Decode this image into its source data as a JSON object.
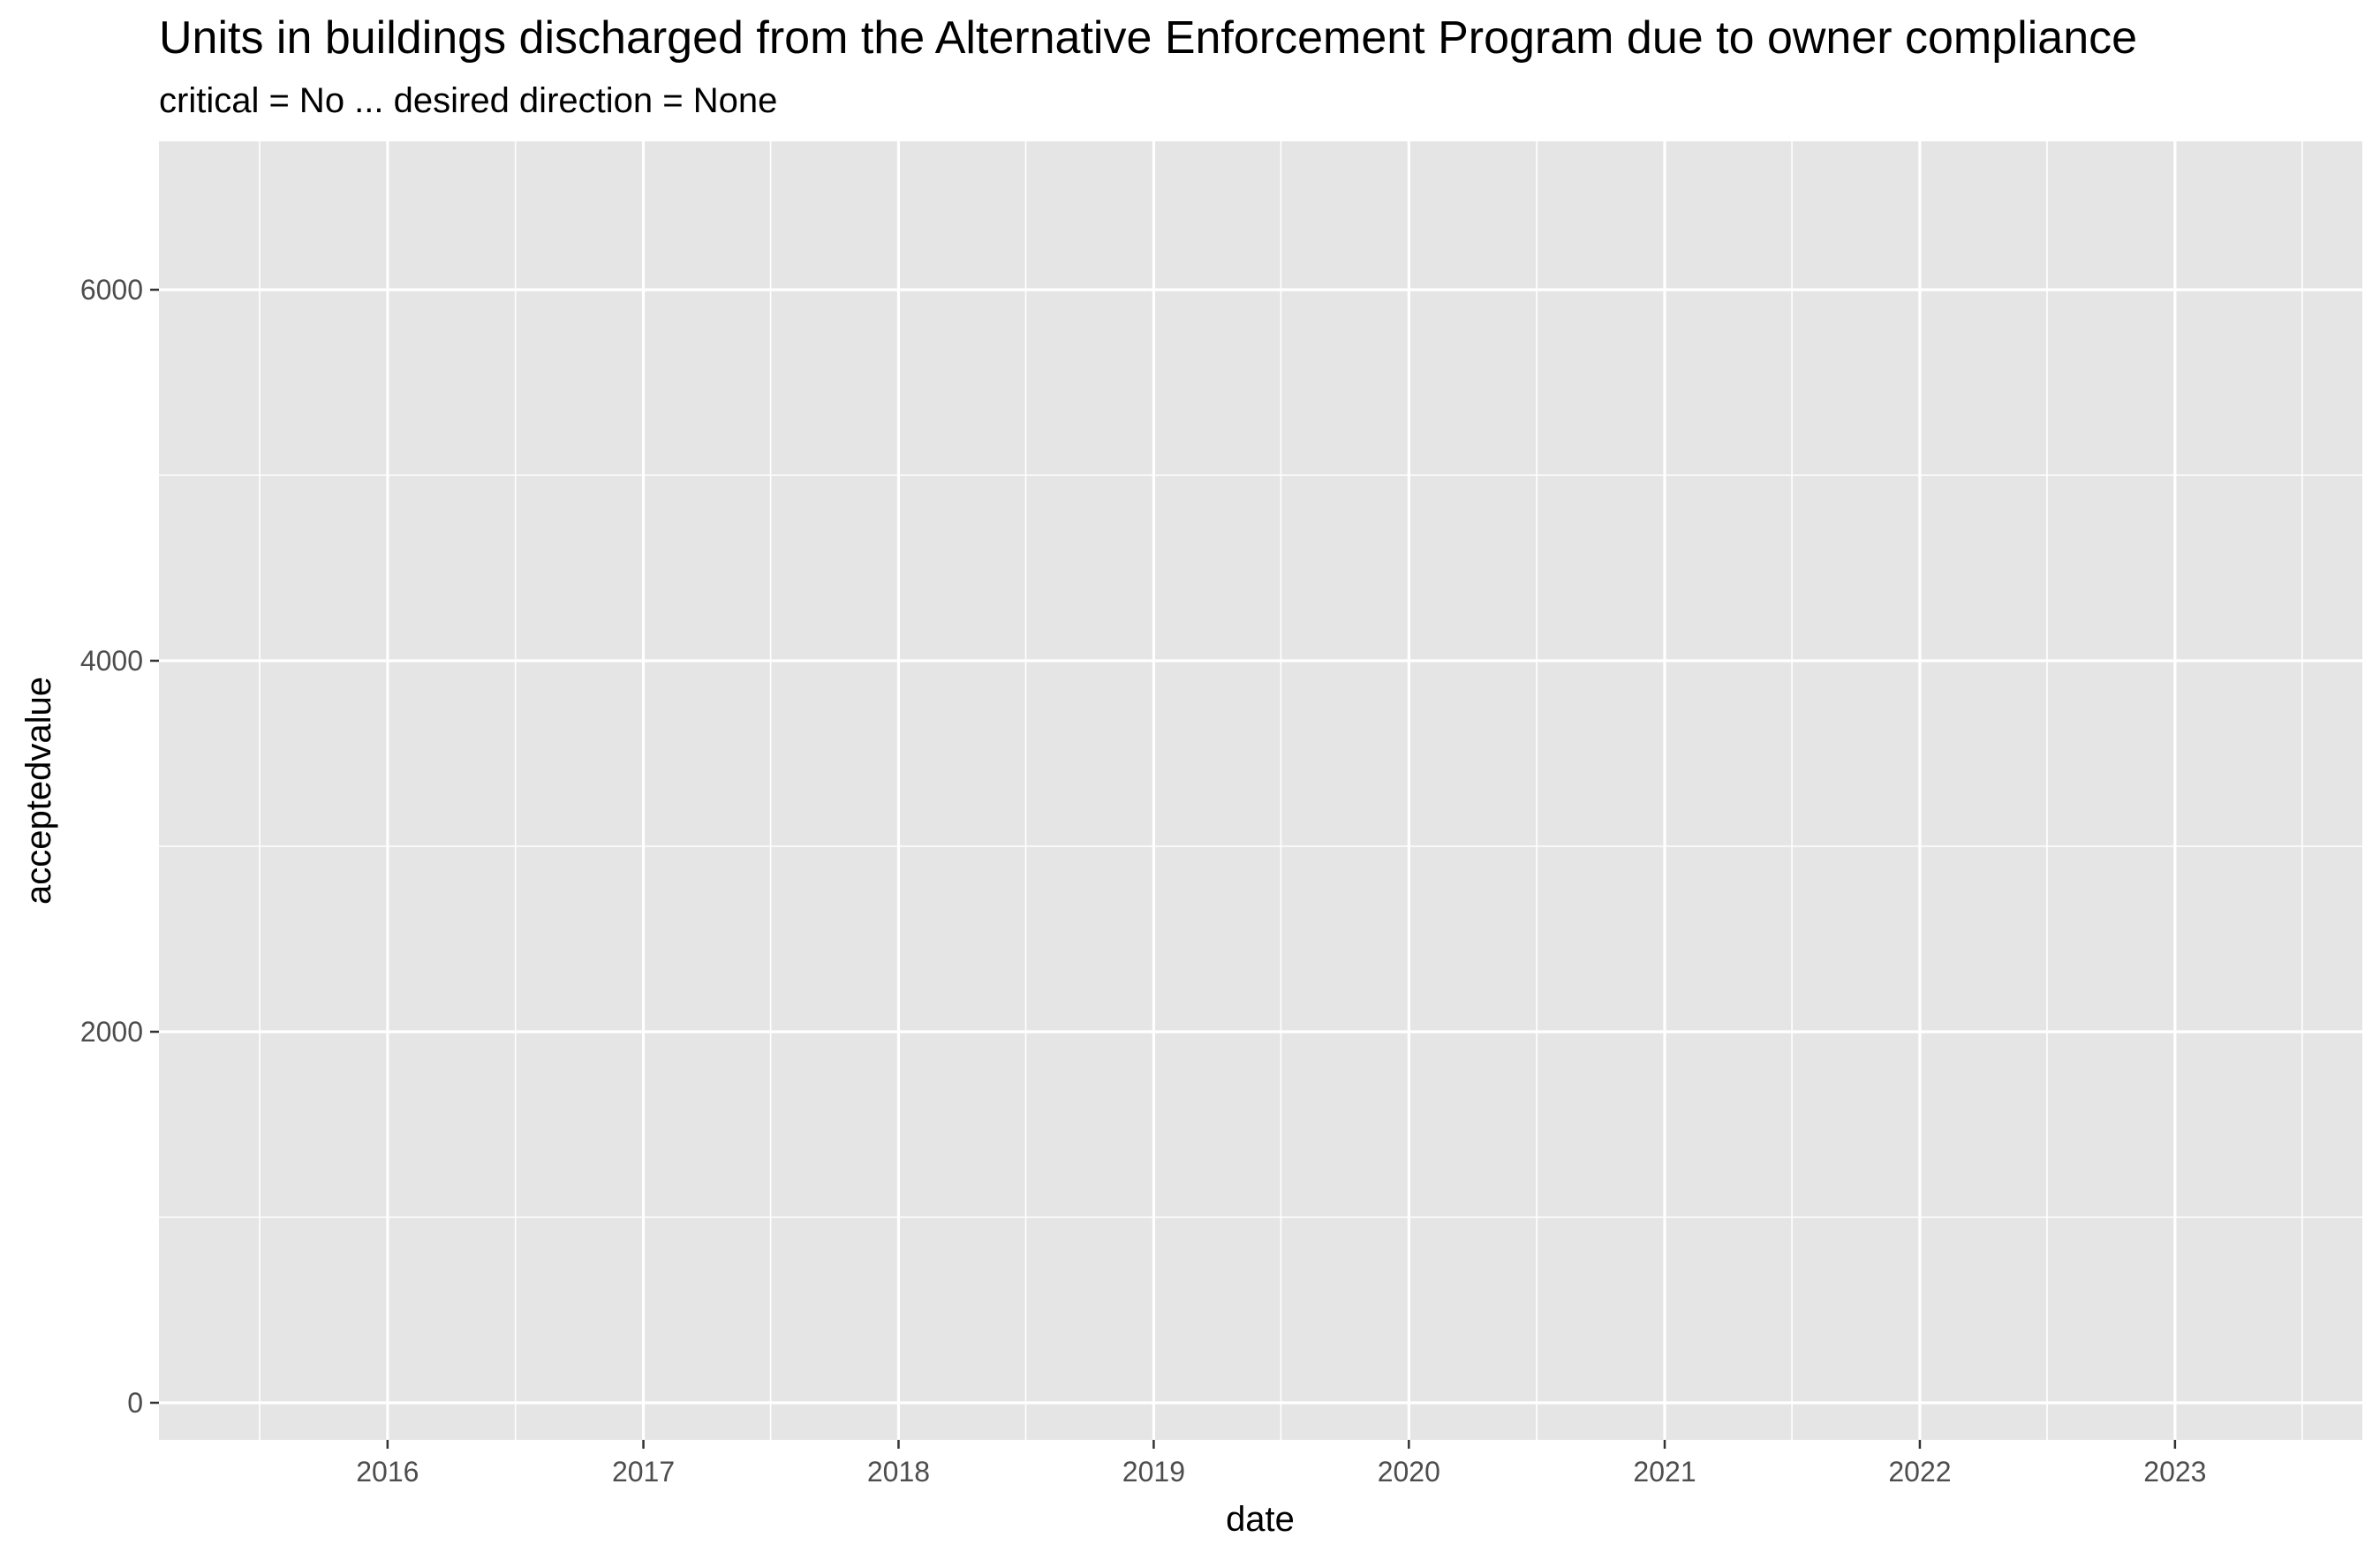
{
  "chart_data": {
    "type": "line",
    "title": "Units in buildings discharged from the Alternative Enforcement Program due to owner compliance",
    "subtitle": "critical = No ... desired direction = None",
    "xlabel": "date",
    "ylabel": "acceptedvalue",
    "x_ticks": [
      "2016",
      "2017",
      "2018",
      "2019",
      "2020",
      "2021",
      "2022",
      "2023"
    ],
    "y_ticks": [
      0,
      2000,
      4000,
      6000
    ],
    "xlim": [
      "2015-02-08",
      "2023-09-26"
    ],
    "ylim": [
      -200,
      6800
    ],
    "grid": true,
    "legend": "none",
    "series": [],
    "colors": {
      "panel": "#e5e5e5",
      "grid": "#ffffff",
      "tick_text": "#4d4d4d",
      "axis_tick": "#333333"
    }
  }
}
